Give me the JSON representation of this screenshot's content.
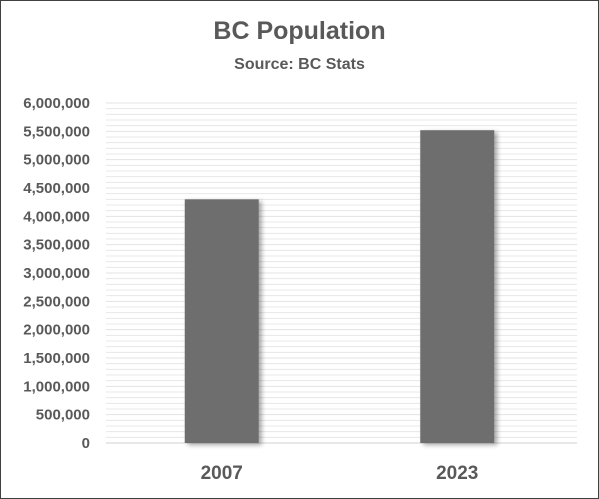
{
  "chart_data": {
    "type": "bar",
    "title": "BC Population",
    "subtitle": "Source: BC Stats",
    "categories": [
      "2007",
      "2023"
    ],
    "values": [
      4300000,
      5520000
    ],
    "ylim": [
      0,
      6000000
    ],
    "yticks": [
      "0",
      "500,000",
      "1,000,000",
      "1,500,000",
      "2,000,000",
      "2,500,000",
      "3,000,000",
      "3,500,000",
      "4,000,000",
      "4,500,000",
      "5,000,000",
      "5,500,000",
      "6,000,000"
    ],
    "minor_step": 100000,
    "major_step": 500000,
    "grid": true,
    "legend": "none",
    "colors": {
      "bar": "#6e6e6e",
      "grid": "#e3e3e3",
      "text": "#595959",
      "axis": "#d0d0d0"
    }
  }
}
